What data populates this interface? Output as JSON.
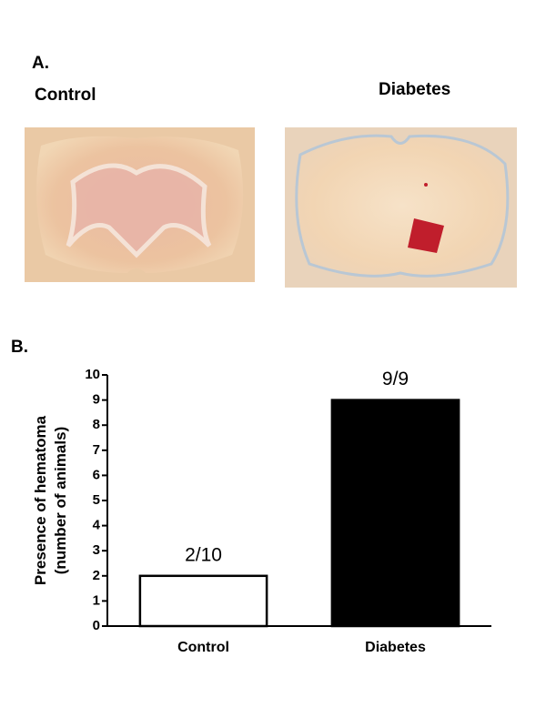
{
  "panel_a": {
    "label": "A.",
    "images": [
      {
        "label": "Control"
      },
      {
        "label": "Diabetes"
      }
    ]
  },
  "panel_b": {
    "label": "B."
  },
  "chart_data": {
    "type": "bar",
    "ylabel": [
      "Presence of hematoma",
      "(number of animals)"
    ],
    "categories": [
      "Control",
      "Diabetes"
    ],
    "values": [
      2,
      9
    ],
    "value_labels": [
      "2/10",
      "9/9"
    ],
    "colors": [
      "#ffffff",
      "#000000"
    ],
    "edgecolor": "#000000",
    "ylim": [
      0,
      10
    ],
    "yticks": [
      0,
      1,
      2,
      3,
      4,
      5,
      6,
      7,
      8,
      9,
      10
    ]
  }
}
